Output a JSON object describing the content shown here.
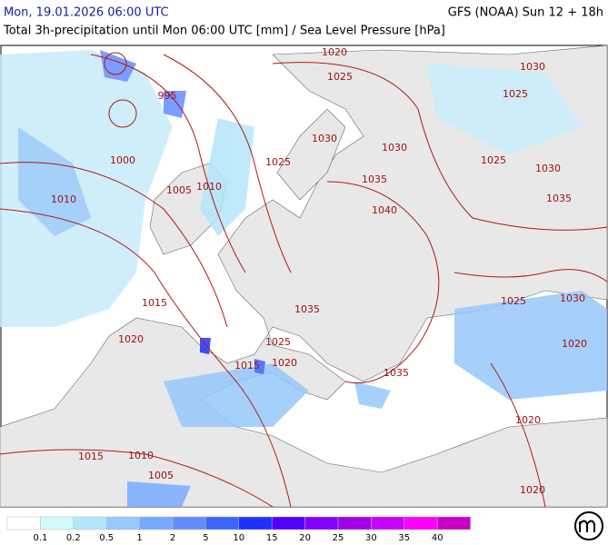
{
  "header": {
    "date": "Mon, 19.01.2026 06:00 UTC",
    "model": "GFS (NOAA) Sun 12 + 18h",
    "subtitle": "Total 3h-precipitation until Mon 06:00 UTC [mm] / Sea Level Pressure [hPa]"
  },
  "isobar_labels": [
    "1020",
    "1025",
    "1030",
    "995",
    "1025",
    "1030",
    "1030",
    "1025",
    "1000",
    "1025",
    "1030",
    "1035",
    "1010",
    "1005",
    "1010",
    "1035",
    "1040",
    "1015",
    "1035",
    "1025",
    "1030",
    "1020",
    "1025",
    "1020",
    "1015",
    "1020",
    "1035",
    "1020",
    "1015",
    "1010",
    "1005",
    "1020"
  ],
  "legend": {
    "colors": [
      "#ffffff",
      "#d2fafa",
      "#b4e6fa",
      "#96c8fa",
      "#78aaff",
      "#648cff",
      "#3c64ff",
      "#1e32ff",
      "#5000ff",
      "#8200ff",
      "#a000e6",
      "#c800ff",
      "#ff00ff",
      "#c800c8"
    ],
    "labels": [
      "0.1",
      "0.2",
      "0.5",
      "1",
      "2",
      "5",
      "10",
      "15",
      "20",
      "25",
      "30",
      "35",
      "40"
    ]
  }
}
